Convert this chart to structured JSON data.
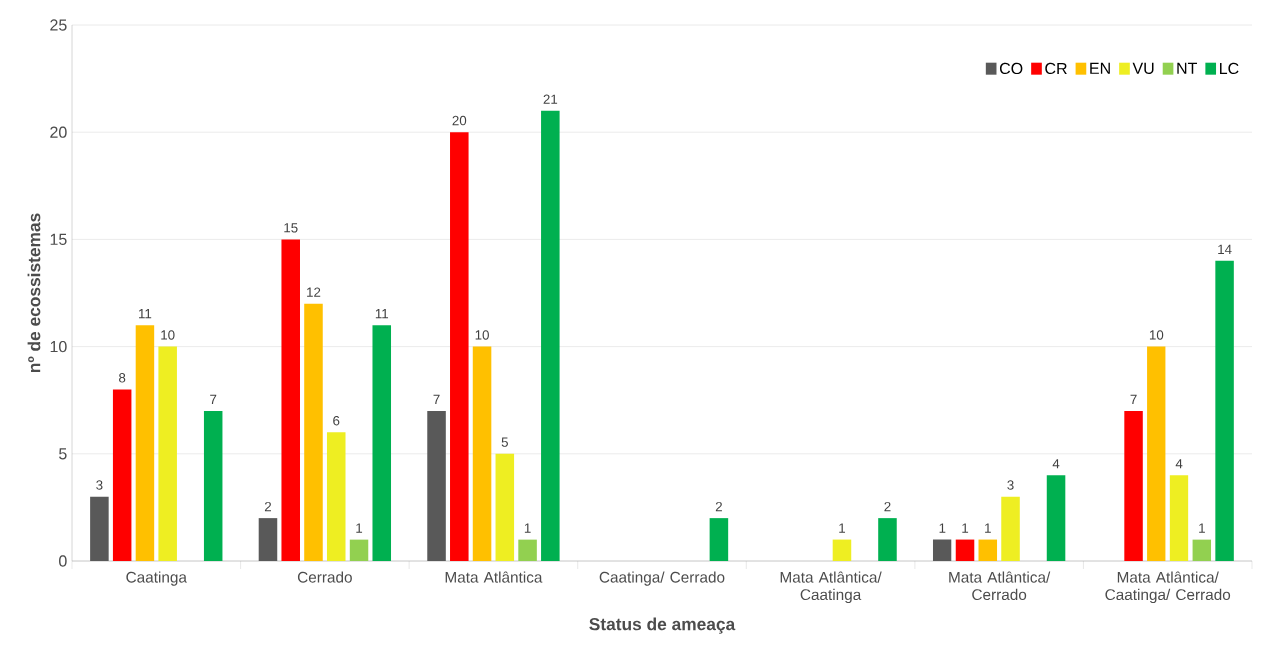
{
  "chart_data": {
    "type": "bar",
    "xlabel": "Status de ameaça",
    "ylabel": "nº de ecossistemas",
    "categories": [
      "Caatinga",
      "Cerrado",
      "Mata Atlântica",
      "Caatinga/ Cerrado",
      "Mata Atlântica/ Caatinga",
      "Mata Atlântica/ Cerrado",
      "Mata Atlântica/ Caatinga/ Cerrado"
    ],
    "series": [
      {
        "name": "CO",
        "color": "#595959",
        "values": [
          3,
          2,
          7,
          null,
          null,
          1,
          null
        ]
      },
      {
        "name": "CR",
        "color": "#ff0000",
        "values": [
          8,
          15,
          20,
          null,
          null,
          1,
          7
        ]
      },
      {
        "name": "EN",
        "color": "#ffc000",
        "values": [
          11,
          12,
          10,
          null,
          null,
          1,
          10
        ]
      },
      {
        "name": "VU",
        "color": "#eeee22",
        "values": [
          10,
          6,
          5,
          null,
          1,
          3,
          4
        ]
      },
      {
        "name": "NT",
        "color": "#92d050",
        "values": [
          null,
          1,
          1,
          null,
          null,
          null,
          1
        ]
      },
      {
        "name": "LC",
        "color": "#00b050",
        "values": [
          7,
          11,
          21,
          2,
          2,
          4,
          14
        ]
      }
    ],
    "ylim": [
      0,
      25
    ],
    "yticks": [
      0,
      5,
      10,
      15,
      20,
      25
    ],
    "grid": "y",
    "legend": "top right",
    "data_labels": true
  }
}
